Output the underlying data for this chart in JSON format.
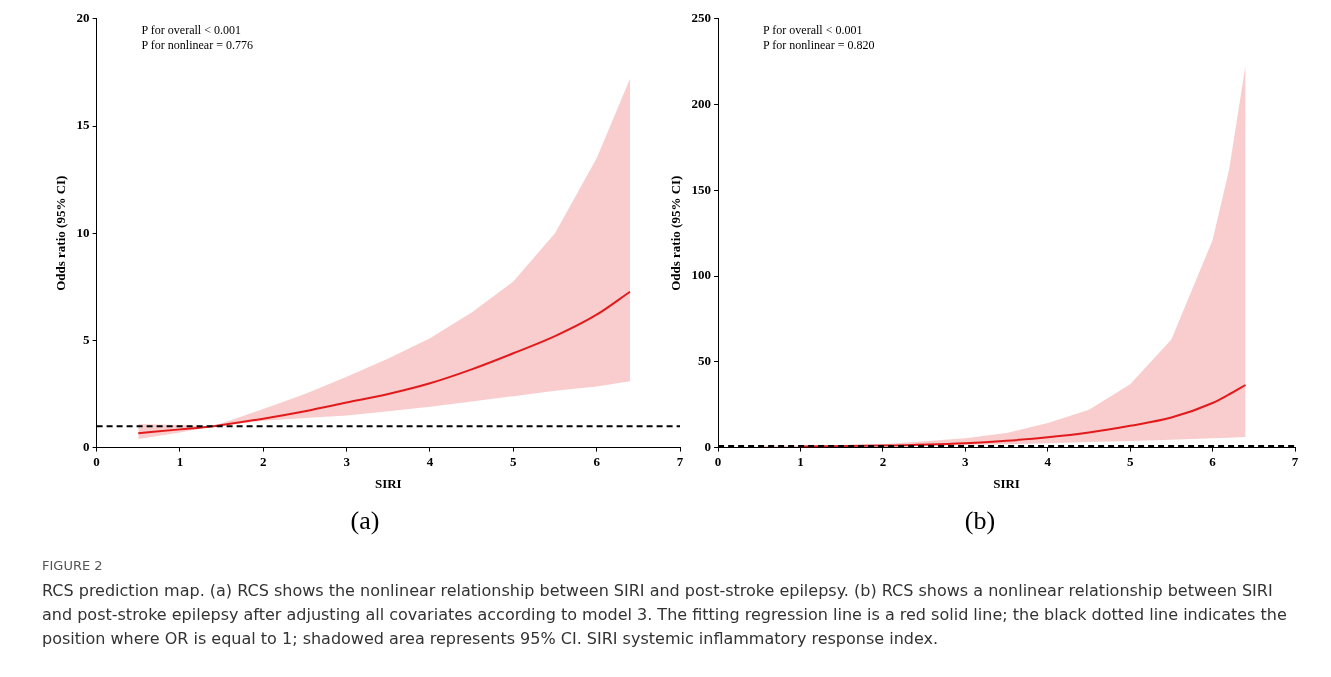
{
  "chart_data": [
    {
      "type": "line",
      "title": "(a)",
      "xlabel": "SIRI",
      "ylabel": "Odds ratio (95% CI)",
      "xlim": [
        0,
        7
      ],
      "xticks": [
        0,
        1,
        2,
        3,
        4,
        5,
        6,
        7
      ],
      "ylim": [
        0,
        20
      ],
      "yticks": [
        0,
        5,
        10,
        15,
        20
      ],
      "grid": false,
      "legend": false,
      "marker": "none",
      "line_style": "solid",
      "series": [
        {
          "color": "#e31a1c",
          "x": [
            0.5,
            1,
            1.4,
            2,
            2.5,
            3,
            3.5,
            4,
            4.5,
            5,
            5.5,
            6,
            6.4
          ],
          "values": [
            0.67,
            0.85,
            1.0,
            1.35,
            1.7,
            2.1,
            2.5,
            3.0,
            3.65,
            4.4,
            5.2,
            6.2,
            7.27
          ],
          "lower": [
            0.4,
            0.7,
            1.0,
            1.25,
            1.38,
            1.5,
            1.7,
            1.9,
            2.15,
            2.4,
            2.65,
            2.85,
            3.1
          ],
          "upper": [
            1.1,
            1.05,
            1.0,
            1.8,
            2.5,
            3.3,
            4.15,
            5.1,
            6.3,
            7.75,
            10,
            13.5,
            17.2
          ]
        }
      ],
      "ref_lines": [
        {
          "axis": "y",
          "value": 1,
          "color": "#000000",
          "line_style": "dashed"
        }
      ],
      "annotations": [
        "P for overall < 0.001",
        "P for nonlinear = 0.776"
      ]
    },
    {
      "type": "line",
      "title": "(b)",
      "xlabel": "SIRI",
      "ylabel": "Odds ratio (95% CI)",
      "xlim": [
        0,
        7
      ],
      "xticks": [
        0,
        1,
        2,
        3,
        4,
        5,
        6,
        7
      ],
      "ylim": [
        0,
        250
      ],
      "yticks": [
        0,
        50,
        100,
        150,
        200,
        250
      ],
      "grid": false,
      "legend": false,
      "marker": "none",
      "line_style": "solid",
      "series": [
        {
          "color": "#e31a1c",
          "x": [
            0.5,
            1,
            2,
            3,
            3.5,
            4,
            4.5,
            5,
            5.5,
            6,
            6.2,
            6.4
          ],
          "values": [
            null,
            0.7,
            1.2,
            2.6,
            4,
            6,
            8.8,
            12.7,
            17.5,
            26,
            31,
            36.5
          ],
          "lower": [
            0.2,
            0.4,
            0.9,
            1.5,
            2,
            2.6,
            3.2,
            3.8,
            4.6,
            5.5,
            5.8,
            6.2
          ],
          "upper": [
            1,
            1.2,
            2,
            5.5,
            8.5,
            14.4,
            22,
            37,
            63,
            121,
            162,
            223
          ]
        }
      ],
      "ref_lines": [
        {
          "axis": "y",
          "value": 1,
          "color": "#000000",
          "line_style": "dashed"
        }
      ],
      "annotations": [
        "P for overall < 0.001",
        "P for nonlinear = 0.820"
      ]
    },
    {
      "type": "other",
      "title": "FIGURE 2",
      "annotations": [
        "RCS prediction map. (a) RCS shows the nonlinear relationship between SIRI and post-stroke epilepsy. (b) RCS shows a nonlinear relationship between SIRI and post-stroke epilepsy after adjusting all covariates according to model 3. The fitting regression line is a red solid line; the black dotted line indicates the position where OR is equal to 1; shadowed area represents 95% CI. SIRI systemic inflammatory response index."
      ]
    }
  ]
}
